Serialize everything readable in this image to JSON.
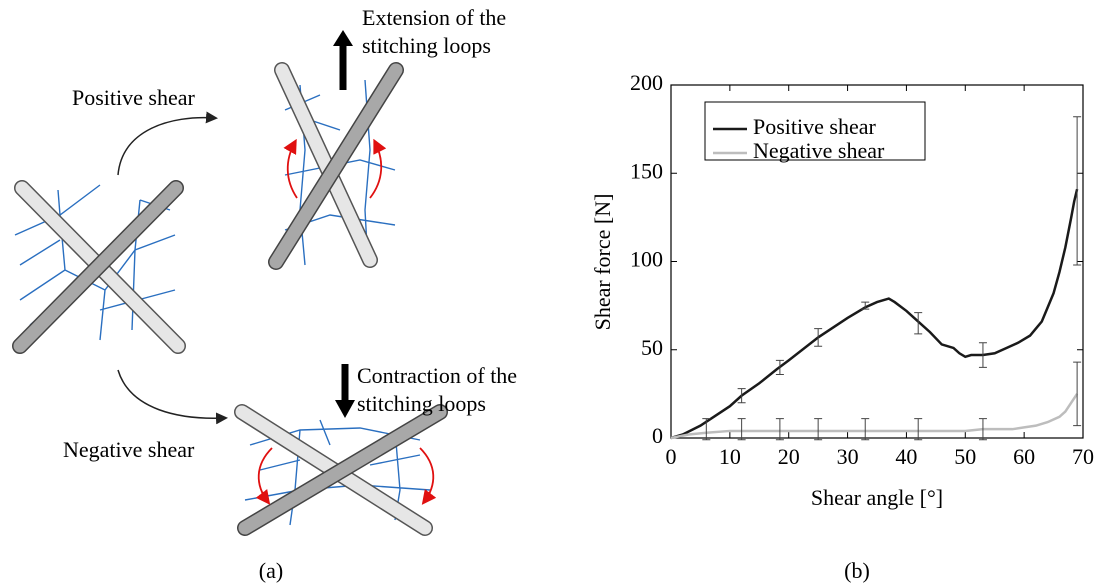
{
  "diagram": {
    "positive_label": "Positive shear",
    "negative_label": "Negative shear",
    "extension_label": [
      "Extension of the",
      "stitching loops"
    ],
    "contraction_label": [
      "Contraction of the",
      "stitching loops"
    ],
    "caption": "(a)"
  },
  "chart_data": {
    "type": "line",
    "caption": "(b)",
    "x_label": "Shear angle [°]",
    "y_label": "Shear force [N]",
    "xlim": [
      0,
      70
    ],
    "xticks": [
      0,
      10,
      20,
      30,
      40,
      50,
      60,
      70
    ],
    "ylim": [
      0,
      200
    ],
    "yticks": [
      0,
      50,
      100,
      150,
      200
    ],
    "legend": "upper-left",
    "series": [
      {
        "name": "Positive shear",
        "color": "#1a1a1a",
        "x": [
          0,
          2,
          5,
          10,
          12,
          15,
          18,
          20,
          25,
          30,
          33,
          35,
          37,
          38,
          40,
          42,
          44,
          46,
          48,
          49,
          50,
          51,
          53,
          55,
          57,
          59,
          61,
          62,
          63,
          64,
          65,
          66,
          67,
          68,
          68.5,
          69
        ],
        "values": [
          0,
          2,
          7,
          18,
          24,
          31,
          39,
          44,
          57,
          68,
          74,
          77,
          79,
          77,
          72,
          66,
          60,
          53,
          51,
          48,
          46,
          47,
          47,
          48,
          51,
          54,
          58,
          62,
          66,
          74,
          82,
          94,
          108,
          125,
          134,
          141
        ],
        "error_bars": {
          "x": [
            12,
            18.5,
            25,
            33,
            42,
            53,
            69
          ],
          "values": [
            24,
            40,
            57,
            75,
            65,
            47,
            140
          ],
          "errors": [
            4,
            4,
            5,
            2,
            6,
            7,
            42
          ]
        }
      },
      {
        "name": "Negative shear",
        "color": "#bdbdbd",
        "x": [
          0,
          3,
          6,
          10,
          20,
          30,
          40,
          50,
          53,
          55,
          58,
          60,
          62,
          64,
          66,
          67,
          68,
          69
        ],
        "values": [
          0,
          2,
          3,
          4,
          4,
          4,
          4,
          4,
          5,
          5,
          5,
          6,
          7,
          9,
          12,
          15,
          20,
          25
        ],
        "error_bars": {
          "x": [
            6,
            12,
            18.5,
            25,
            33,
            42,
            53,
            69
          ],
          "values": [
            5,
            5,
            5,
            5,
            5,
            5,
            5,
            25
          ],
          "errors": [
            6,
            6,
            6,
            6,
            6,
            6,
            6,
            18
          ]
        }
      }
    ]
  }
}
